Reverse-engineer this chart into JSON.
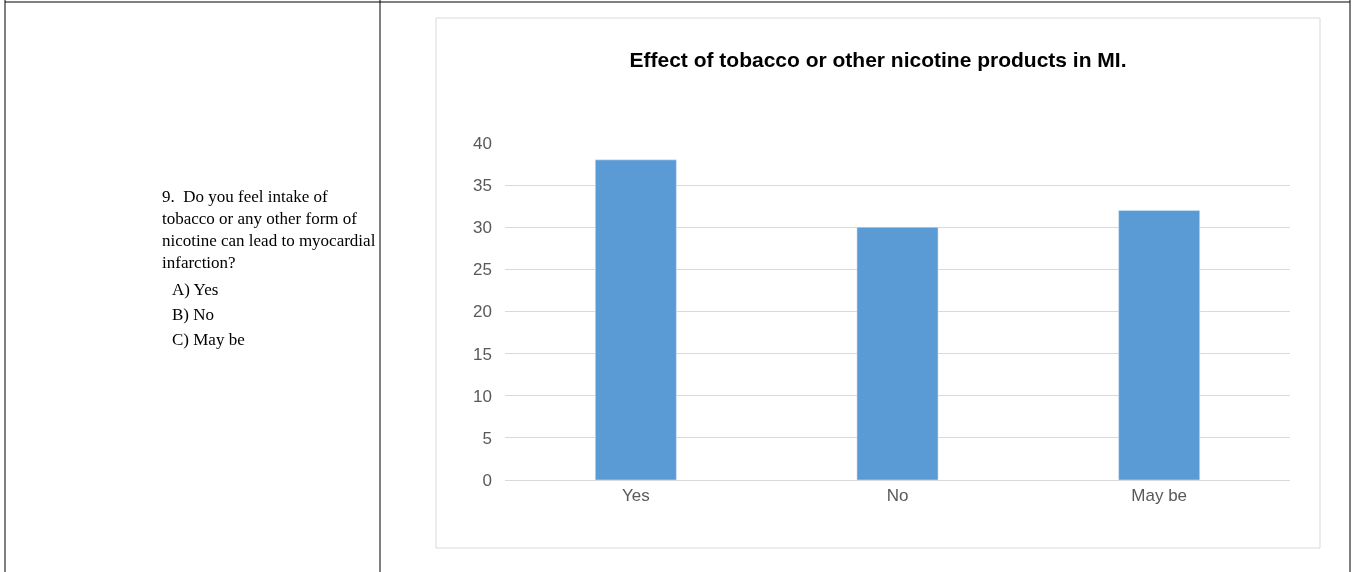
{
  "chart_data": {
    "type": "bar",
    "title": "Effect of tobacco or other nicotine products in MI.",
    "categories": [
      "Yes",
      "No",
      "May be"
    ],
    "values": [
      38,
      30,
      32
    ],
    "color": "#5b9bd5",
    "ylim": [
      0,
      40
    ],
    "yticks": [
      0,
      5,
      10,
      15,
      20,
      25,
      30,
      35,
      40
    ],
    "grid": "y",
    "legend": false,
    "annotations": [
      "9.  Do you feel intake of tobacco or any other form of nicotine can lead to myocardial infarction?",
      "A) Yes",
      "B) No",
      "C) May be"
    ]
  }
}
